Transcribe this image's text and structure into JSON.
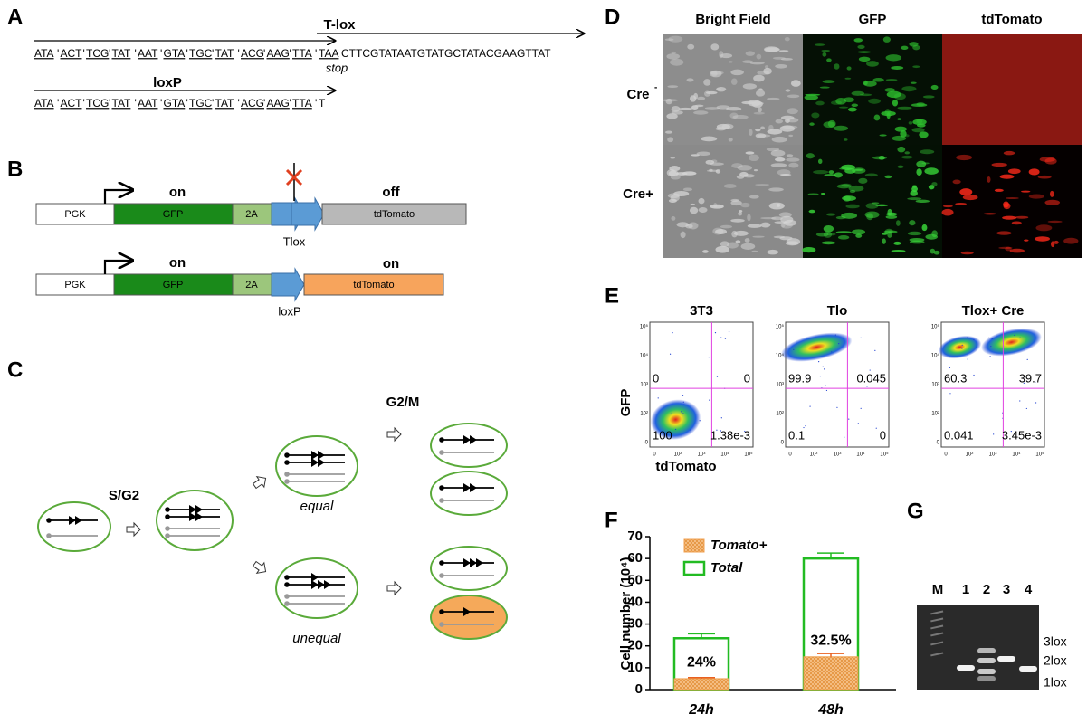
{
  "panel_a": {
    "letter": "A",
    "tlox_title": "T-lox",
    "codons": [
      "ATA",
      "ACT",
      "TCG",
      "TAT",
      "AAT",
      "GTA",
      "TGC",
      "TAT",
      "ACG",
      "AAG",
      "TTA"
    ],
    "separator": "'",
    "stop_codon": "TAA",
    "tlox_tail": "CTTCGTATAATGTATGCTATACGAAGTTAT",
    "stop_label": "stop",
    "loxp_title": "loxP",
    "loxp_tail": "T"
  },
  "panel_b": {
    "letter": "B",
    "promoter": "PGK",
    "gfp": "GFP",
    "linker": "2A",
    "reporter": "tdTomato",
    "on": "on",
    "off": "off",
    "tlox": "Tlox",
    "loxp": "loxP"
  },
  "panel_c": {
    "letter": "C",
    "sg2": "S/G2",
    "g2m": "G2/M",
    "equal": "equal",
    "unequal": "unequal"
  },
  "panel_d": {
    "letter": "D",
    "columns": [
      "Bright Field",
      "GFP",
      "tdTomato"
    ],
    "row1": "Cre",
    "row1_sup": "-",
    "row2": "Cre+"
  },
  "panel_e": {
    "letter": "E",
    "plots": [
      {
        "title": "3T3",
        "quadrants": [
          "0",
          "0",
          "100",
          "1.38e-3"
        ]
      },
      {
        "title": "Tlo",
        "quadrants": [
          "99.9",
          "0.045",
          "0.1",
          "0"
        ]
      },
      {
        "title": "Tlox+ Cre",
        "quadrants": [
          "60.3",
          "39.7",
          "0.041",
          "3.45e-3"
        ]
      }
    ],
    "y_axis": "GFP",
    "x_axis": "tdTomato",
    "x_ticks": [
      "0",
      "10²",
      "10³",
      "10⁴",
      "10⁵"
    ],
    "y_ticks": [
      "0",
      "10²",
      "10³",
      "10⁴",
      "10⁵"
    ]
  },
  "chart_data": {
    "type": "bar",
    "letter": "F",
    "ylabel": "Cell number (10⁴)",
    "categories": [
      "24h",
      "48h"
    ],
    "series": [
      {
        "name": "Tomato+",
        "color": "#f0a050",
        "values": [
          5,
          15
        ],
        "errors": [
          0.5,
          1.5
        ]
      },
      {
        "name": "Total",
        "color": "#22bb22",
        "values": [
          23.5,
          60
        ],
        "errors": [
          2,
          2.5
        ]
      }
    ],
    "annotations": [
      "24%",
      "32.5%"
    ],
    "ylim": [
      0,
      70
    ],
    "yticks": [
      0,
      10,
      20,
      30,
      40,
      50,
      60,
      70
    ]
  },
  "panel_g": {
    "letter": "G",
    "lanes": [
      "M",
      "1",
      "2",
      "3",
      "4"
    ],
    "bands": [
      "3lox",
      "2lox",
      "1lox"
    ]
  }
}
